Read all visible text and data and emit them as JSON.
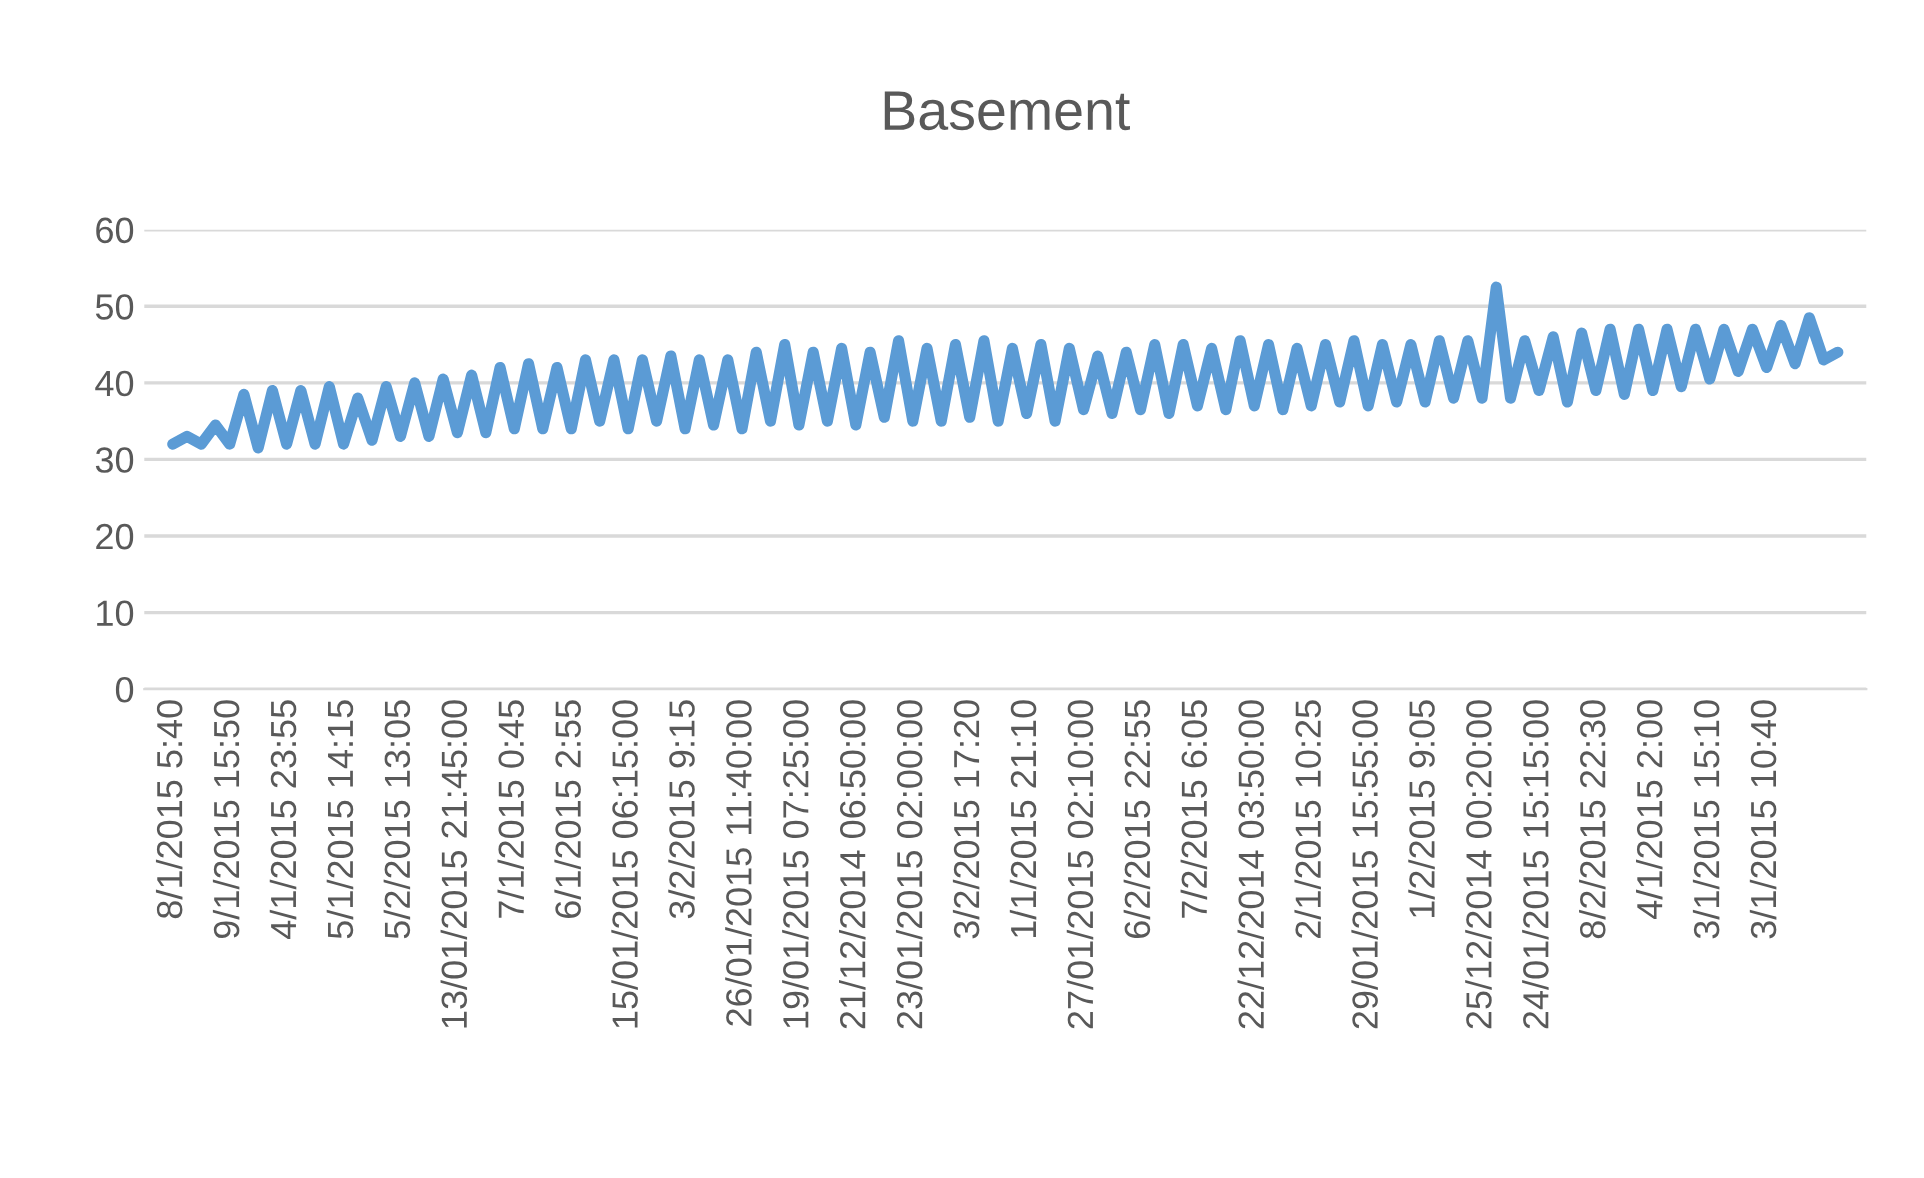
{
  "chart_data": {
    "type": "line",
    "title": "Basement",
    "categories": [
      "8/1/2015 5:40",
      null,
      null,
      null,
      "9/1/2015 15:50",
      null,
      null,
      null,
      "4/1/2015 23:55",
      null,
      null,
      null,
      "5/1/2015 14:15",
      null,
      null,
      null,
      "5/2/2015 13:05",
      null,
      null,
      null,
      "13/01/2015 21:45:00",
      null,
      null,
      null,
      "7/1/2015 0:45",
      null,
      null,
      null,
      "6/1/2015 2:55",
      null,
      null,
      null,
      "15/01/2015 06:15:00",
      null,
      null,
      null,
      "3/2/2015 9:15",
      null,
      null,
      null,
      "26/01/2015 11:40:00",
      null,
      null,
      null,
      "19/01/2015 07:25:00",
      null,
      null,
      null,
      "21/12/2014 06:50:00",
      null,
      null,
      null,
      "23/01/2015 02:00:00",
      null,
      null,
      null,
      "3/2/2015 17:20",
      null,
      null,
      null,
      "1/1/2015 21:10",
      null,
      null,
      null,
      "27/01/2015 02:10:00",
      null,
      null,
      null,
      "6/2/2015 22:55",
      null,
      null,
      null,
      "7/2/2015 6:05",
      null,
      null,
      null,
      "22/12/2014 03:50:00",
      null,
      null,
      null,
      "2/1/2015 10:25",
      null,
      null,
      null,
      "29/01/2015 15:55:00",
      null,
      null,
      null,
      "1/2/2015 9:05",
      null,
      null,
      null,
      "25/12/2014 00:20:00",
      null,
      null,
      null,
      "24/01/2015 15:15:00",
      null,
      null,
      null,
      "8/2/2015 22:30",
      null,
      null,
      null,
      "4/1/2015 2:00",
      null,
      null,
      null,
      "3/1/2015 15:10",
      null,
      null,
      null,
      "3/1/2015 10:40",
      null,
      null,
      null,
      null,
      null
    ],
    "series": [
      {
        "color": "#5b9bd5",
        "values": [
          32,
          33,
          32,
          34.5,
          32,
          38.5,
          31.5,
          39,
          32,
          39,
          32,
          39.5,
          32,
          38,
          32.5,
          39.5,
          33,
          40,
          33,
          40.5,
          33.5,
          41,
          33.5,
          42,
          34,
          42.5,
          34,
          42,
          34,
          43,
          35,
          43,
          34,
          43,
          35,
          43.5,
          34,
          43,
          34.5,
          43,
          34,
          44,
          35,
          45,
          34.5,
          44,
          35,
          44.5,
          34.5,
          44,
          35.5,
          45.5,
          35,
          44.5,
          35,
          45,
          35.5,
          45.5,
          35,
          44.5,
          36,
          45,
          35,
          44.5,
          36.5,
          43.5,
          36,
          44,
          36.5,
          45,
          36,
          45,
          37,
          44.5,
          36.5,
          45.5,
          37,
          45,
          36.5,
          44.5,
          37,
          45,
          37.5,
          45.5,
          37,
          45,
          37.5,
          45,
          37.5,
          45.5,
          38,
          45.5,
          38,
          52.5,
          38,
          45.5,
          39,
          46,
          37.5,
          46.5,
          39,
          47,
          38.5,
          47,
          39,
          47,
          39.5,
          47,
          40.5,
          47,
          41.5,
          47,
          42,
          47.5,
          42.5,
          48.5,
          43,
          44
        ]
      }
    ],
    "ylim": [
      0,
      60
    ],
    "yticks": [
      0,
      10,
      20,
      30,
      40,
      50,
      60
    ],
    "grid": "y",
    "legend": false,
    "marker": "none",
    "line_style": "solid"
  }
}
